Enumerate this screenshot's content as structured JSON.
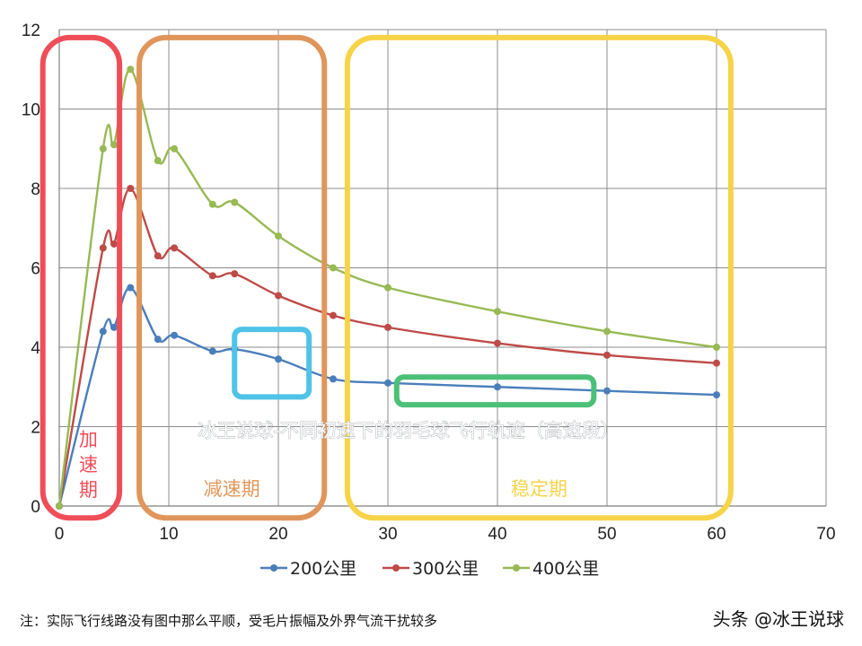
{
  "chart_data": {
    "type": "line",
    "title": "冰王说球-不同初速下的羽毛球飞行轨迹（高速段）",
    "xlabel": "",
    "ylabel": "",
    "xlim": [
      0,
      70
    ],
    "ylim": [
      0,
      12
    ],
    "x_ticks": [
      0,
      10,
      20,
      30,
      40,
      50,
      60,
      70
    ],
    "y_ticks": [
      0,
      2,
      4,
      6,
      8,
      10,
      12
    ],
    "grid": true,
    "legend_position": "bottom",
    "series": [
      {
        "name": "200公里",
        "color": "#4a7ebb",
        "x": [
          0,
          4,
          5,
          6.5,
          9,
          10.5,
          14,
          16,
          20,
          25,
          30,
          40,
          50,
          60
        ],
        "y": [
          0,
          4.4,
          4.5,
          5.5,
          4.2,
          4.3,
          3.9,
          3.95,
          3.7,
          3.2,
          3.1,
          3.0,
          2.9,
          2.8
        ]
      },
      {
        "name": "300公里",
        "color": "#be4b48",
        "x": [
          0,
          4,
          5,
          6.5,
          9,
          10.5,
          14,
          16,
          20,
          25,
          30,
          40,
          50,
          60
        ],
        "y": [
          0,
          6.5,
          6.6,
          8.0,
          6.3,
          6.5,
          5.8,
          5.85,
          5.3,
          4.8,
          4.5,
          4.1,
          3.8,
          3.6
        ]
      },
      {
        "name": "400公里",
        "color": "#98b954",
        "x": [
          0,
          4,
          5,
          6.5,
          9,
          10.5,
          14,
          16,
          20,
          25,
          30,
          40,
          50,
          60
        ],
        "y": [
          0,
          9.0,
          9.1,
          11.0,
          8.7,
          9.0,
          7.6,
          7.65,
          6.8,
          6.0,
          5.5,
          4.9,
          4.4,
          4.0
        ]
      }
    ],
    "regions": [
      {
        "label": "加速期",
        "vertical": true,
        "color": "#ef4d57",
        "x0": -1.5,
        "x1": 5.5,
        "y0": -0.3,
        "y1": 11.8
      },
      {
        "label": "减速期",
        "vertical": false,
        "color": "#e0955a",
        "x0": 7.3,
        "x1": 24.2,
        "y0": -0.3,
        "y1": 11.8
      },
      {
        "label": "稳定期",
        "vertical": false,
        "color": "#f7d348",
        "x0": 26.3,
        "x1": 61.3,
        "y0": -0.3,
        "y1": 11.8
      }
    ],
    "highlights": [
      {
        "color": "#4fc3e8",
        "x0": 16,
        "x1": 22.8,
        "y0": 2.75,
        "y1": 4.45
      },
      {
        "color": "#4cc078",
        "x0": 30.8,
        "x1": 48.8,
        "y0": 2.55,
        "y1": 3.25
      }
    ]
  },
  "footnote": "注：实际飞行线路没有图中那么平顺，受毛片振幅及外界气流干扰较多",
  "credit": "头条 @冰王说球"
}
